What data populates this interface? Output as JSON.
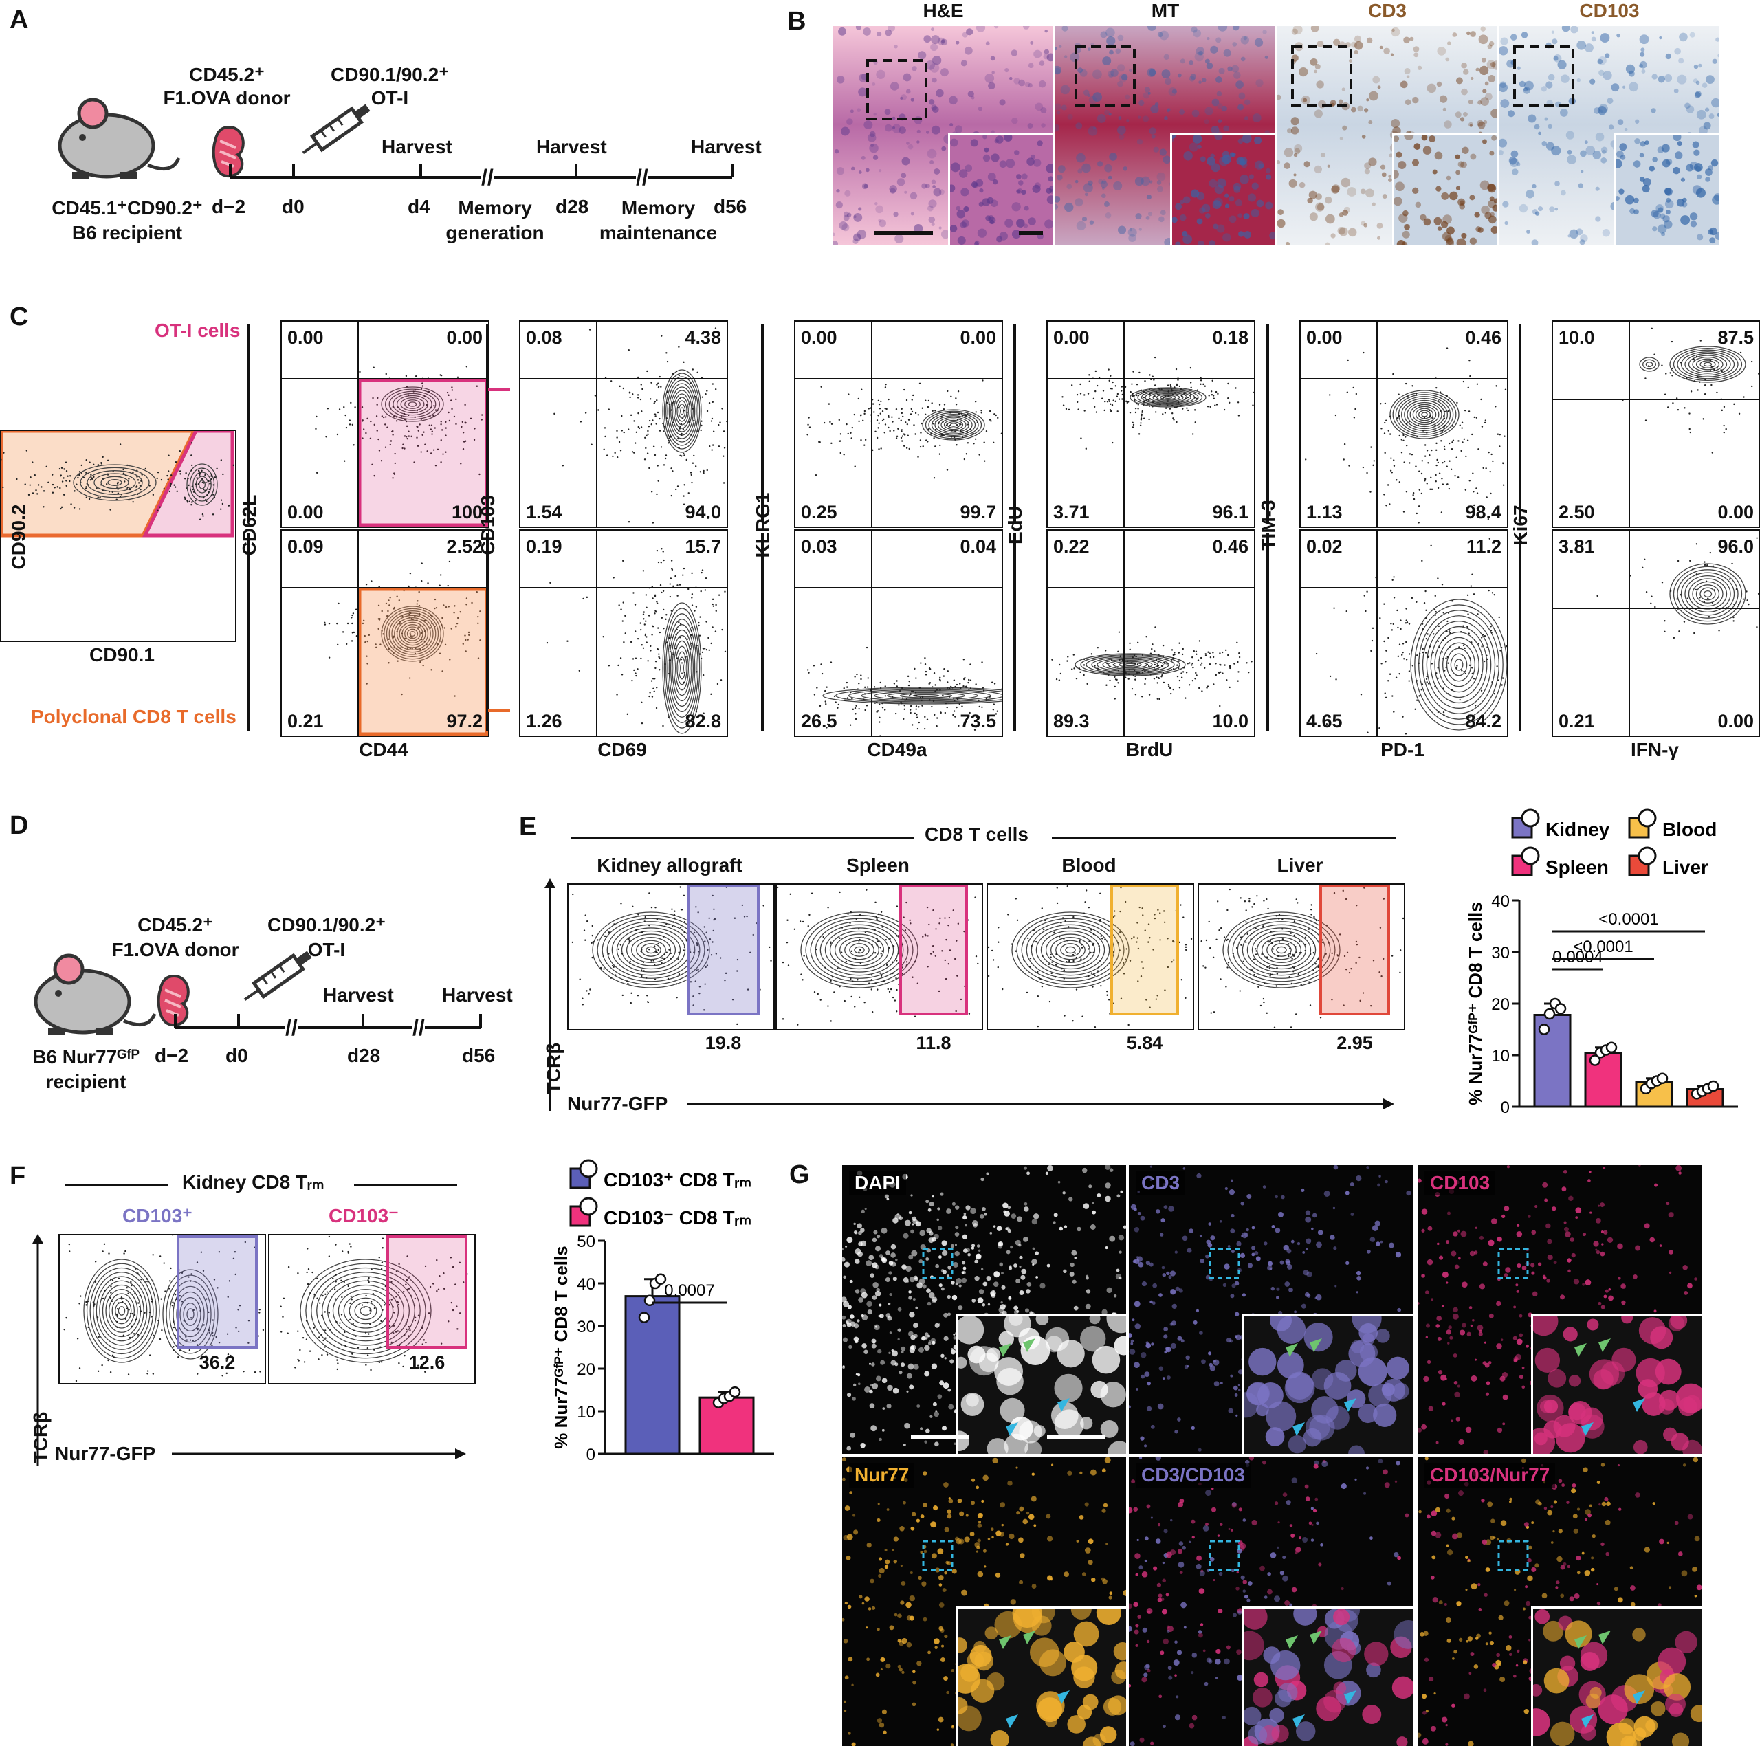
{
  "panels": {
    "A": {
      "letter": "A",
      "donor": "CD45.2⁺\nF1.OVA donor",
      "otI": "CD90.1/90.2⁺\nOT-I",
      "recipient": "CD45.1⁺CD90.2⁺\nB6 recipient",
      "days": [
        "d−2",
        "d0",
        "d4",
        "d28",
        "d56"
      ],
      "harvest": "Harvest",
      "phase1": "Memory\ngeneration",
      "phase2": "Memory\nmaintenance"
    },
    "B": {
      "letter": "B",
      "stains": [
        "H&E",
        "MT",
        "CD3",
        "CD103"
      ],
      "stain_colors": [
        "#111111",
        "#111111",
        "#8a5a2b",
        "#8a5a2b"
      ]
    },
    "C": {
      "letter": "C",
      "ot1_label": "OT-I cells",
      "poly_label": "Polyclonal CD8 T cells",
      "pre_x": "CD90.1",
      "pre_y": "CD90.2",
      "columns": [
        {
          "x": "CD44",
          "y": "CD62L",
          "top": [
            "0.00",
            "0.00",
            "0.00",
            "100"
          ],
          "bottom": [
            "0.09",
            "2.52",
            "0.21",
            "97.2"
          ]
        },
        {
          "x": "CD69",
          "y": "CD103",
          "top": [
            "0.08",
            "4.38",
            "1.54",
            "94.0"
          ],
          "bottom": [
            "0.19",
            "15.7",
            "1.26",
            "82.8"
          ]
        },
        {
          "x": "CD49a",
          "y": "KLRG1",
          "top": [
            "0.00",
            "0.00",
            "0.25",
            "99.7"
          ],
          "bottom": [
            "0.03",
            "0.04",
            "26.5",
            "73.5"
          ]
        },
        {
          "x": "BrdU",
          "y": "EdU",
          "top": [
            "0.00",
            "0.18",
            "3.71",
            "96.1"
          ],
          "bottom": [
            "0.22",
            "0.46",
            "89.3",
            "10.0"
          ]
        },
        {
          "x": "PD-1",
          "y": "TIM-3",
          "top": [
            "0.00",
            "0.46",
            "1.13",
            "98.4"
          ],
          "bottom": [
            "0.02",
            "11.2",
            "4.65",
            "84.2"
          ]
        },
        {
          "x": "IFN-γ",
          "y": "Ki67",
          "top": [
            "10.0",
            "87.5",
            "2.50",
            "0.00"
          ],
          "bottom": [
            "3.81",
            "96.0",
            "0.21",
            "0.00"
          ]
        }
      ]
    },
    "D": {
      "letter": "D",
      "donor": "CD45.2⁺\nF1.OVA donor",
      "otI": "CD90.1/90.2⁺\nOT-I",
      "recipient": "B6 Nur77ᴳᶠᴾ\nrecipient",
      "days": [
        "d−2",
        "d0",
        "d28",
        "d56"
      ],
      "harvest": "Harvest"
    },
    "E": {
      "letter": "E",
      "header": "CD8 T cells",
      "tissues": [
        {
          "name": "Kidney allograft",
          "value": "19.8",
          "color": "#7b74c4",
          "fill": "rgba(123,116,196,0.30)"
        },
        {
          "name": "Spleen",
          "value": "11.8",
          "color": "#d8327d",
          "fill": "rgba(216,50,125,0.22)"
        },
        {
          "name": "Blood",
          "value": "5.84",
          "color": "#f0b030",
          "fill": "rgba(240,176,48,0.25)"
        },
        {
          "name": "Liver",
          "value": "2.95",
          "color": "#e0483a",
          "fill": "rgba(232,90,70,0.30)"
        }
      ],
      "x_label": "Nur77-GFP",
      "y_label": "TCRβ"
    },
    "F": {
      "letter": "F",
      "header": "Kidney CD8 Tᵣₘ",
      "pos": {
        "name": "CD103⁺",
        "value": "36.2",
        "color": "#7b74c4"
      },
      "neg": {
        "name": "CD103⁻",
        "value": "12.6",
        "color": "#d8327d"
      },
      "x_label": "Nur77-GFP",
      "y_label": "TCRβ"
    },
    "G": {
      "letter": "G",
      "tiles": [
        {
          "label": "DAPI",
          "colors": [
            "#ffffff"
          ]
        },
        {
          "label": "CD3",
          "colors": [
            "#7b74c4"
          ]
        },
        {
          "label": "CD103",
          "colors": [
            "#d8327d"
          ]
        },
        {
          "label": "Nur77",
          "colors": [
            "#f0b030"
          ]
        },
        {
          "label": "CD3/CD103",
          "colors": [
            "#7b74c4",
            "#d8327d"
          ]
        },
        {
          "label": "CD103/Nur77",
          "colors": [
            "#d8327d",
            "#f0b030"
          ]
        }
      ]
    }
  },
  "chart_data": [
    {
      "type": "bar",
      "panel": "E",
      "categories": [
        "Kidney",
        "Spleen",
        "Blood",
        "Liver"
      ],
      "values": [
        17.8,
        10.4,
        4.8,
        3.4
      ],
      "points": [
        [
          15,
          18,
          20,
          19
        ],
        [
          9,
          10.5,
          11,
          11.5
        ],
        [
          3.5,
          4.5,
          5,
          5.5
        ],
        [
          2.5,
          3,
          3.5,
          4
        ]
      ],
      "colors": [
        "#7b74c4",
        "#f0327d",
        "#f7c04a",
        "#ea4a3a"
      ],
      "ylabel": "% Nur77ᴳᶠᴾ⁺ CD8 T cells",
      "ylim": [
        0,
        40
      ],
      "yticks": [
        "0",
        "10",
        "20",
        "30",
        "40"
      ],
      "legend": [
        "Kidney",
        "Blood",
        "Spleen",
        "Liver"
      ],
      "comparisons": [
        {
          "from": "Kidney",
          "to": "Spleen",
          "p": "0.0004"
        },
        {
          "from": "Kidney",
          "to": "Blood",
          "p": "<0.0001"
        },
        {
          "from": "Kidney",
          "to": "Liver",
          "p": "<0.0001"
        }
      ]
    },
    {
      "type": "bar",
      "panel": "F",
      "categories": [
        "CD103⁺ CD8 Tᵣₘ",
        "CD103⁻ CD8 Tᵣₘ"
      ],
      "values": [
        37,
        13.2
      ],
      "points": [
        [
          32,
          36,
          40,
          41
        ],
        [
          12,
          13,
          13.5,
          14.5
        ]
      ],
      "colors": [
        "#5b5fb8",
        "#f0327d"
      ],
      "ylabel": "% Nur77ᴳᶠᴾ⁺ CD8 T cells",
      "ylim": [
        0,
        50
      ],
      "yticks": [
        "0",
        "10",
        "20",
        "30",
        "40",
        "50"
      ],
      "legend": [
        "CD103⁺ CD8 Tᵣₘ",
        "CD103⁻ CD8 Tᵣₘ"
      ],
      "comparisons": [
        {
          "from": 0,
          "to": 1,
          "p": "0.0007"
        }
      ]
    }
  ]
}
